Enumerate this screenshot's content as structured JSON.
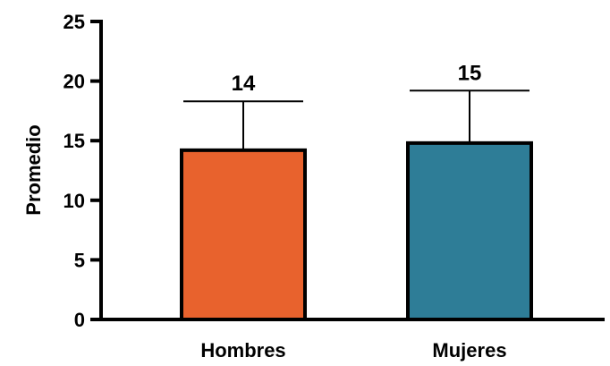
{
  "chart_data": {
    "type": "bar",
    "title": "",
    "xlabel": "",
    "ylabel": "Promedio",
    "ylim": [
      0,
      25
    ],
    "yticks": [
      0,
      5,
      10,
      15,
      20,
      25
    ],
    "grid": false,
    "categories": [
      "Hombres",
      "Mujeres"
    ],
    "values": [
      14.2,
      14.8
    ],
    "error_upper": [
      18.3,
      19.2
    ],
    "data_labels": [
      "14",
      "15"
    ],
    "colors": [
      "#e8622d",
      "#2e7d97"
    ],
    "edge_color": "#000000"
  }
}
